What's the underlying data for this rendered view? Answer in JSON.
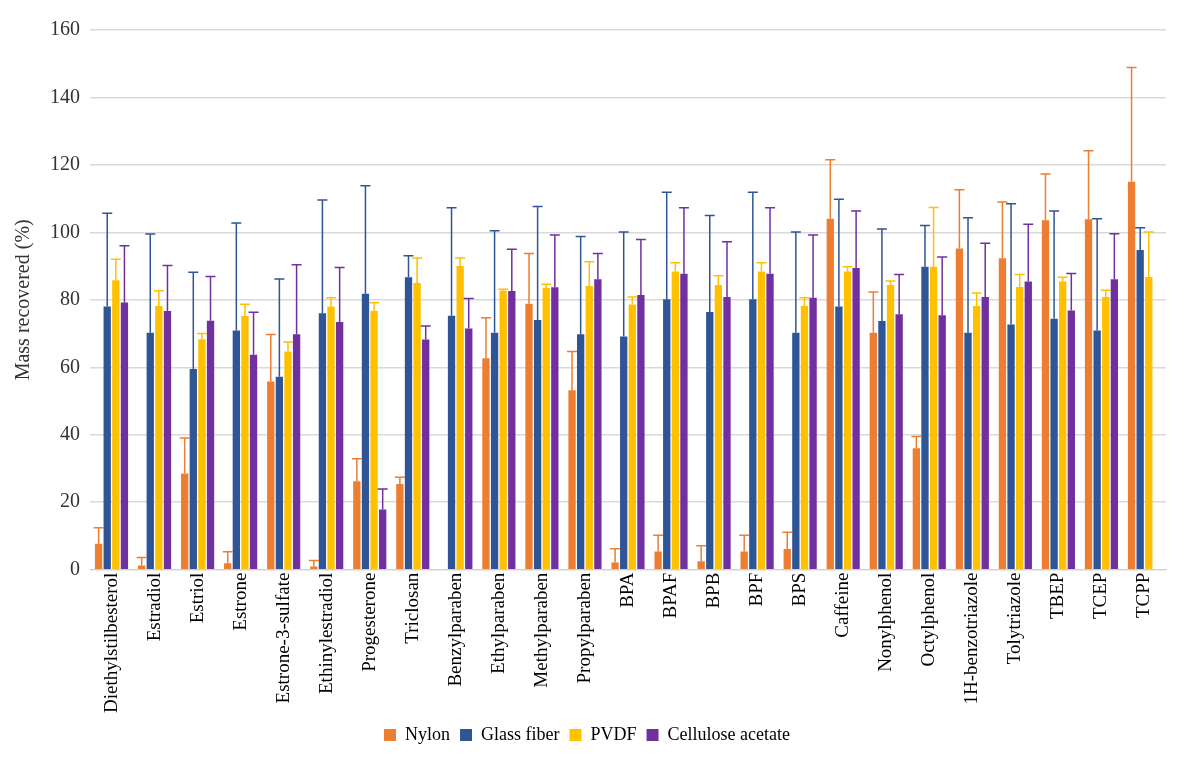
{
  "chart_data": {
    "type": "bar",
    "ylabel": "Mass recovered (%)",
    "categories": [
      "Diethylstilbesterol",
      "Estradiol",
      "Estriol",
      "Estrone",
      "Estrone-3-sulfate",
      "Ethinylestradiol",
      "Progesterone",
      "Triclosan",
      "Benzylparaben",
      "Ethylparaben",
      "Methylparaben",
      "Propylparaben",
      "BPA",
      "BPAF",
      "BPB",
      "BPF",
      "BPS",
      "Caffeine",
      "Nonylphenol",
      "Octylphenol",
      "1H-benzotriazole",
      "Tolytriazole",
      "TBEP",
      "TCEP",
      "TCPP"
    ],
    "ylim": [
      0,
      160
    ],
    "yticks": [
      0,
      20,
      40,
      60,
      80,
      100,
      120,
      140,
      160
    ],
    "grid": "y",
    "legend": "bottom",
    "series": [
      {
        "name": "Nylon",
        "color": "#ed7d31",
        "values": [
          7.7,
          1.2,
          28.5,
          1.9,
          55.8,
          0.9,
          26.2,
          25.4,
          null,
          62.7,
          78.8,
          53.2,
          2.1,
          5.4,
          2.5,
          5.4,
          6.1,
          104,
          70.2,
          36,
          95.2,
          92.3,
          103.6,
          103.9,
          115
        ],
        "errors": [
          [
            7.7,
            12.4
          ],
          [
            1.2,
            3.6
          ],
          [
            28.5,
            39
          ],
          [
            1.9,
            5.3
          ],
          [
            55.8,
            69.7
          ],
          [
            0.9,
            2.7
          ],
          [
            26.2,
            32.9
          ],
          [
            25.4,
            27.4
          ],
          null,
          [
            62.7,
            74.7
          ],
          [
            78.8,
            93.7
          ],
          [
            53.2,
            64.7
          ],
          [
            2.1,
            6.2
          ],
          [
            5.4,
            10.2
          ],
          [
            2.5,
            7.1
          ],
          [
            5.4,
            10.2
          ],
          [
            6.1,
            11.1
          ],
          [
            104,
            121.5
          ],
          [
            70.2,
            82.3
          ],
          [
            36,
            39.5
          ],
          [
            95.2,
            112.6
          ],
          [
            92.3,
            109
          ],
          [
            103.6,
            117.3
          ],
          [
            103.9,
            124.2
          ],
          [
            115,
            148.9
          ]
        ]
      },
      {
        "name": "Glass fiber",
        "color": "#2f5597",
        "values": [
          78,
          70.2,
          59.5,
          70.9,
          57.2,
          76,
          81.8,
          86.7,
          75.3,
          70.2,
          74,
          69.8,
          69.1,
          80.2,
          76.4,
          80.2,
          70.2,
          78,
          73.7,
          89.8,
          70.2,
          72.7,
          74.4,
          70.9,
          94.8
        ],
        "errors": [
          [
            78,
            105.7
          ],
          [
            70.2,
            99.5
          ],
          [
            59.5,
            88.2
          ],
          [
            70.9,
            102.8
          ],
          [
            57.2,
            86.2
          ],
          [
            76,
            109.6
          ],
          [
            81.8,
            113.8
          ],
          [
            86.7,
            93.1
          ],
          [
            75.3,
            107.3
          ],
          [
            70.2,
            100.5
          ],
          [
            74,
            107.7
          ],
          [
            69.8,
            98.8
          ],
          [
            69.1,
            100.1
          ],
          [
            80.2,
            111.9
          ],
          [
            76.4,
            105
          ],
          [
            80.2,
            111.9
          ],
          [
            70.2,
            100.1
          ],
          [
            78,
            109.8
          ],
          [
            73.7,
            101
          ],
          [
            89.8,
            102
          ],
          [
            70.2,
            104.3
          ],
          [
            72.7,
            108.5
          ],
          [
            74.4,
            106.3
          ],
          [
            70.9,
            104
          ],
          [
            94.8,
            101.4
          ]
        ]
      },
      {
        "name": "PVDF",
        "color": "#ffc000",
        "values": [
          85.8,
          78.2,
          68.3,
          75.2,
          64.7,
          78,
          76.7,
          85,
          90,
          82.7,
          83.5,
          84.1,
          78.6,
          88.4,
          84.4,
          88.4,
          78.2,
          88.4,
          84.4,
          89.8,
          78.2,
          83.8,
          85.4,
          80.8,
          86.8
        ],
        "errors": [
          [
            85.8,
            92
          ],
          [
            78.2,
            82.7
          ],
          [
            68.3,
            70
          ],
          [
            75.2,
            78.7
          ],
          [
            64.7,
            67.5
          ],
          [
            78,
            80.6
          ],
          [
            76.7,
            79.1
          ],
          [
            85,
            92.4
          ],
          [
            90,
            92.4
          ],
          [
            82.7,
            83.1
          ],
          [
            83.5,
            84.6
          ],
          [
            84.1,
            91.3
          ],
          [
            78.6,
            80.8
          ],
          [
            88.4,
            91
          ],
          [
            84.4,
            87.1
          ],
          [
            88.4,
            91
          ],
          [
            78.2,
            80.6
          ],
          [
            88.4,
            89.8
          ],
          [
            84.4,
            85.6
          ],
          [
            89.8,
            107.4
          ],
          [
            78.2,
            82
          ],
          [
            83.8,
            87.5
          ],
          [
            85.4,
            86.7
          ],
          [
            80.8,
            82.8
          ],
          [
            86.8,
            100.1
          ]
        ]
      },
      {
        "name": "Cellulose acetate",
        "color": "#7030a0",
        "values": [
          79.2,
          76.7,
          73.8,
          63.7,
          69.8,
          73.4,
          17.8,
          68.2,
          71.5,
          82.6,
          83.7,
          86.1,
          81.4,
          87.7,
          80.8,
          87.7,
          80.6,
          89.4,
          75.7,
          75.4,
          80.8,
          85.4,
          76.8,
          86.1,
          null
        ],
        "errors": [
          [
            79.2,
            96
          ],
          [
            76.7,
            90.2
          ],
          [
            73.8,
            86.9
          ],
          [
            63.7,
            76.3
          ],
          [
            69.8,
            90.4
          ],
          [
            73.4,
            89.6
          ],
          [
            17.8,
            23.9
          ],
          [
            68.2,
            72.2
          ],
          [
            71.5,
            80.4
          ],
          [
            82.6,
            95
          ],
          [
            83.7,
            99.2
          ],
          [
            86.1,
            93.7
          ],
          [
            81.4,
            97.9
          ],
          [
            87.7,
            107.3
          ],
          [
            80.8,
            97.2
          ],
          [
            87.7,
            107.3
          ],
          [
            80.6,
            99.2
          ],
          [
            89.4,
            106.3
          ],
          [
            75.7,
            87.5
          ],
          [
            75.4,
            92.7
          ],
          [
            80.8,
            96.8
          ],
          [
            85.4,
            102.4
          ],
          [
            76.8,
            87.8
          ],
          [
            86.1,
            99.6
          ],
          null
        ]
      }
    ]
  }
}
